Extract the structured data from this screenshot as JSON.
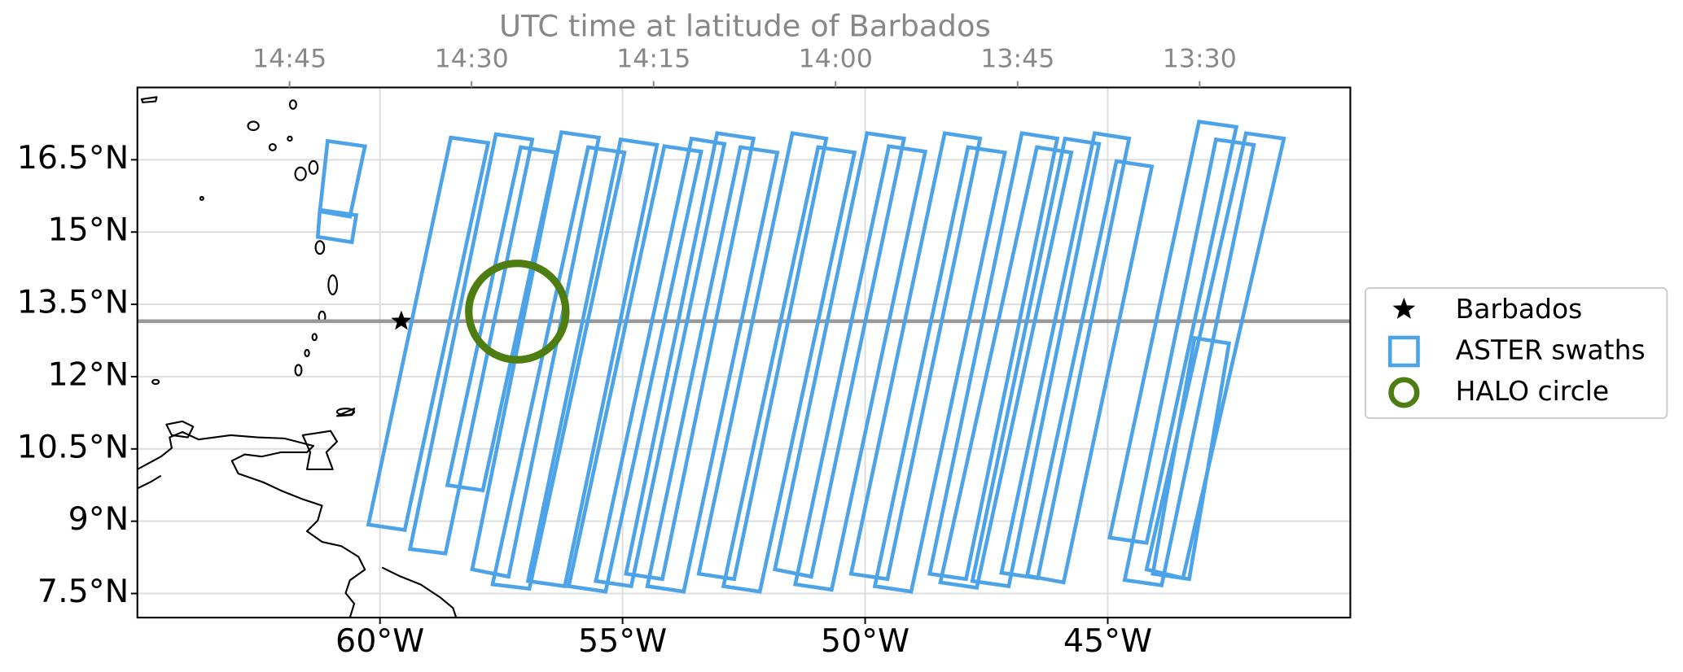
{
  "chart_data": {
    "type": "map",
    "x2label": "UTC time at latitude of Barbados",
    "xlim": [
      -65,
      -40
    ],
    "ylim": [
      7,
      18
    ],
    "xticks": [
      {
        "value": -60,
        "label": "60°W"
      },
      {
        "value": -55,
        "label": "55°W"
      },
      {
        "value": -50,
        "label": "50°W"
      },
      {
        "value": -45,
        "label": "45°W"
      }
    ],
    "yticks": [
      {
        "value": 7.5,
        "label": "7.5°N"
      },
      {
        "value": 9,
        "label": "9°N"
      },
      {
        "value": 10.5,
        "label": "10.5°N"
      },
      {
        "value": 12,
        "label": "12°N"
      },
      {
        "value": 13.5,
        "label": "13.5°N"
      },
      {
        "value": 15,
        "label": "15°N"
      },
      {
        "value": 16.5,
        "label": "16.5°N"
      }
    ],
    "x2lim": [
      14.959,
      13.293
    ],
    "x2ticks": [
      {
        "value": 14.75,
        "label": "14:45"
      },
      {
        "value": 14.5,
        "label": "14:30"
      },
      {
        "value": 14.25,
        "label": "14:15"
      },
      {
        "value": 14.0,
        "label": "14:00"
      },
      {
        "value": 13.75,
        "label": "13:45"
      },
      {
        "value": 13.5,
        "label": "13:30"
      }
    ],
    "grid": true,
    "legend": "right",
    "series": [
      {
        "name": "Barbados",
        "marker": "star",
        "color": "#000000",
        "lon": [
          -59.56
        ],
        "lat": [
          13.15
        ]
      },
      {
        "name": "ASTER swaths",
        "marker": "square",
        "color": "#4da3e8",
        "polygons": [
          {
            "lon": [
              -61.24,
              -61.08,
              -60.31,
              -60.62
            ],
            "lat": [
              15.43,
              16.89,
              16.78,
              15.32
            ]
          },
          {
            "lon": [
              -61.28,
              -61.24,
              -60.49,
              -60.58
            ],
            "lat": [
              14.9,
              15.46,
              15.35,
              14.79
            ]
          },
          {
            "lon": [
              -60.24,
              -58.54,
              -57.77,
              -59.49
            ],
            "lat": [
              8.93,
              16.96,
              16.85,
              8.82
            ]
          },
          {
            "lon": [
              -59.38,
              -57.61,
              -56.86,
              -58.65
            ],
            "lat": [
              8.42,
              17.03,
              16.92,
              8.33
            ]
          },
          {
            "lon": [
              -58.61,
              -57.1,
              -56.37,
              -57.88
            ],
            "lat": [
              9.75,
              16.76,
              16.65,
              9.64
            ]
          },
          {
            "lon": [
              -58.1,
              -56.26,
              -55.49,
              -57.35
            ],
            "lat": [
              8.0,
              17.07,
              16.96,
              7.85
            ]
          },
          {
            "lon": [
              -57.68,
              -55.71,
              -54.96,
              -56.92
            ],
            "lat": [
              7.69,
              16.76,
              16.65,
              7.6
            ]
          },
          {
            "lon": [
              -56.95,
              -55.04,
              -54.29,
              -56.19
            ],
            "lat": [
              7.76,
              16.92,
              16.81,
              7.65
            ]
          },
          {
            "lon": [
              -56.11,
              -54.14,
              -53.38,
              -55.35
            ],
            "lat": [
              7.65,
              16.78,
              16.67,
              7.54
            ]
          },
          {
            "lon": [
              -55.55,
              -53.58,
              -52.9,
              -54.82
            ],
            "lat": [
              7.76,
              16.94,
              16.83,
              7.65
            ]
          },
          {
            "lon": [
              -54.93,
              -53.05,
              -52.3,
              -54.18
            ],
            "lat": [
              7.91,
              17.05,
              16.94,
              7.8
            ]
          },
          {
            "lon": [
              -54.49,
              -52.57,
              -51.81,
              -53.74
            ],
            "lat": [
              7.65,
              16.76,
              16.65,
              7.54
            ]
          },
          {
            "lon": [
              -53.43,
              -51.5,
              -50.8,
              -52.7
            ],
            "lat": [
              7.91,
              17.05,
              16.94,
              7.8
            ]
          },
          {
            "lon": [
              -52.92,
              -50.97,
              -50.22,
              -52.17
            ],
            "lat": [
              7.65,
              16.76,
              16.65,
              7.54
            ]
          },
          {
            "lon": [
              -51.86,
              -49.96,
              -49.2,
              -51.11
            ],
            "lat": [
              8.0,
              17.05,
              16.94,
              7.85
            ]
          },
          {
            "lon": [
              -51.44,
              -49.51,
              -48.76,
              -50.69
            ],
            "lat": [
              7.69,
              16.78,
              16.67,
              7.58
            ]
          },
          {
            "lon": [
              -50.29,
              -48.36,
              -47.63,
              -49.54
            ],
            "lat": [
              7.91,
              17.05,
              16.94,
              7.8
            ]
          },
          {
            "lon": [
              -49.8,
              -47.88,
              -47.12,
              -49.05
            ],
            "lat": [
              7.65,
              16.76,
              16.65,
              7.54
            ]
          },
          {
            "lon": [
              -48.67,
              -46.77,
              -46.04,
              -47.92
            ],
            "lat": [
              7.91,
              17.05,
              16.94,
              7.8
            ]
          },
          {
            "lon": [
              -48.45,
              -46.46,
              -45.75,
              -47.7
            ],
            "lat": [
              7.73,
              16.76,
              16.65,
              7.62
            ]
          },
          {
            "lon": [
              -47.79,
              -45.88,
              -45.18,
              -47.04
            ],
            "lat": [
              7.76,
              16.94,
              16.83,
              7.65
            ]
          },
          {
            "lon": [
              -47.19,
              -45.27,
              -44.56,
              -46.44
            ],
            "lat": [
              7.93,
              17.05,
              16.94,
              7.82
            ]
          },
          {
            "lon": [
              -46.66,
              -44.82,
              -44.09,
              -45.91
            ],
            "lat": [
              7.87,
              16.47,
              16.36,
              7.73
            ]
          },
          {
            "lon": [
              -44.96,
              -43.12,
              -42.35,
              -44.2
            ],
            "lat": [
              8.66,
              17.29,
              17.18,
              8.55
            ]
          },
          {
            "lon": [
              -44.65,
              -42.77,
              -41.99,
              -43.89
            ],
            "lat": [
              7.78,
              16.92,
              16.81,
              7.67
            ]
          },
          {
            "lon": [
              -44.2,
              -42.15,
              -41.37,
              -43.45
            ],
            "lat": [
              8.0,
              17.05,
              16.94,
              7.82
            ]
          },
          {
            "lon": [
              -44.07,
              -43.21,
              -42.5,
              -43.32
            ],
            "lat": [
              7.91,
              12.8,
              12.69,
              7.8
            ]
          }
        ]
      },
      {
        "name": "HALO circle",
        "marker": "circle",
        "color": "#4e7d12",
        "lon": [
          -57.17
        ],
        "lat": [
          13.35
        ],
        "radius": 1.0
      }
    ]
  }
}
